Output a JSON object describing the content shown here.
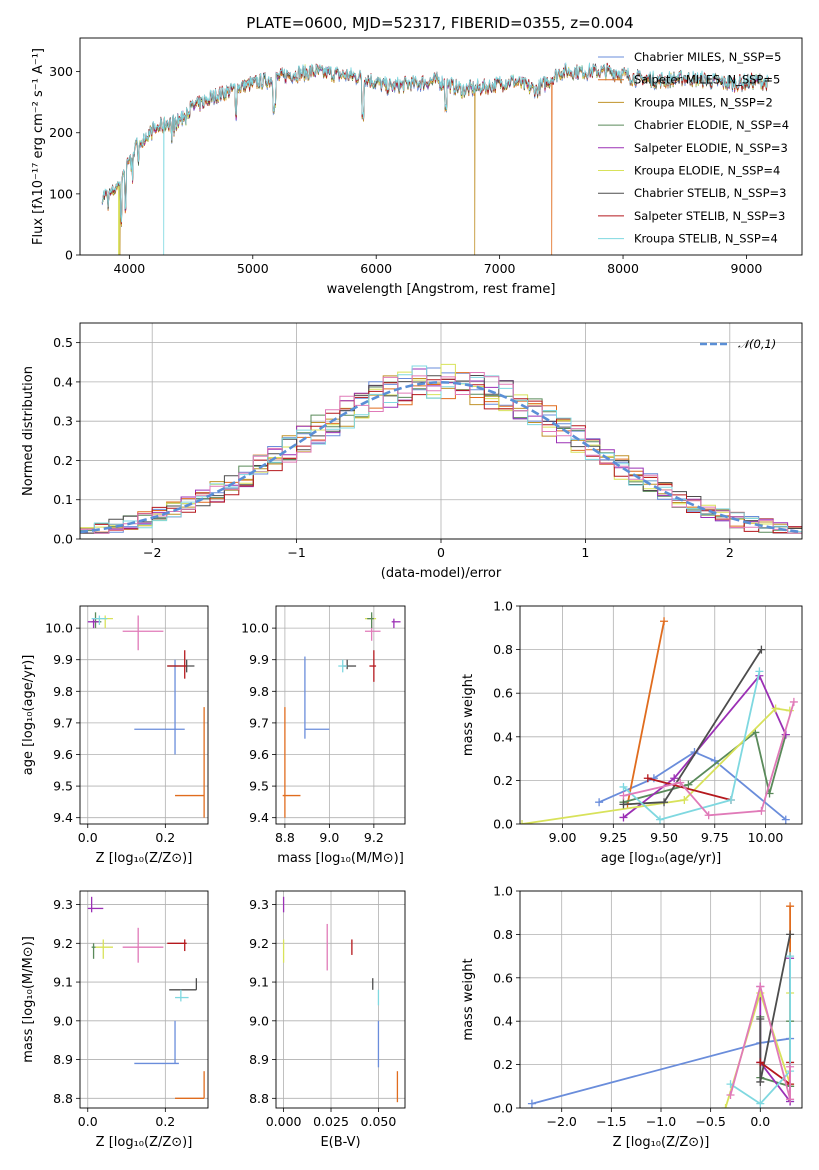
{
  "colors": {
    "Chabrier MILES": "#6a8ddb",
    "Salpeter MILES": "#e06c1e",
    "Kroupa MILES": "#c0922a",
    "Chabrier ELODIE": "#5a8a5a",
    "Salpeter ELODIE": "#9b30b5",
    "Kroupa ELODIE": "#d8e25a",
    "Chabrier STELIB": "#4d4d4d",
    "Salpeter STELIB": "#b5181d",
    "Kroupa STELIB": "#7fd8e0",
    "Salpeter ELODIE pink": "#e07ab8",
    "normal": "#5a8fd6",
    "grid": "#b0b0b0"
  },
  "chart_data": [
    {
      "id": "spectrum",
      "type": "line",
      "title": "PLATE=0600, MJD=52317, FIBERID=0355, z=0.004",
      "xlabel": "wavelength [Angstrom, rest frame]",
      "ylabel": "Flux [fλ10⁻¹⁷ erg cm⁻² s⁻¹ A⁻¹]",
      "xlim": [
        3600,
        9450
      ],
      "ylim": [
        0,
        355
      ],
      "xticks": [
        "4000",
        "5000",
        "6000",
        "7000",
        "8000",
        "9000"
      ],
      "yticks": [
        "0",
        "100",
        "200",
        "300"
      ],
      "grid": false,
      "legend_position": "upper-right",
      "legend": [
        "Chabrier MILES, N_SSP=5",
        "Salpeter MILES, N_SSP=5",
        "Kroupa MILES, N_SSP=2",
        "Chabrier ELODIE, N_SSP=4",
        "Salpeter ELODIE, N_SSP=3",
        "Kroupa ELODIE, N_SSP=4",
        "Chabrier STELIB, N_SSP=3",
        "Salpeter STELIB, N_SSP=3",
        "Kroupa STELIB, N_SSP=4"
      ],
      "continuum_x": [
        3780,
        3850,
        3920,
        4000,
        4100,
        4200,
        4300,
        4400,
        4500,
        4700,
        4900,
        5100,
        5300,
        5500,
        5700,
        5900,
        6100,
        6300,
        6500,
        6700,
        6900,
        7100,
        7300,
        7500,
        7700,
        7900,
        8100,
        8300,
        8500,
        8700,
        8900,
        9100,
        9180
      ],
      "continuum_y": [
        95,
        100,
        120,
        160,
        190,
        205,
        215,
        220,
        240,
        260,
        275,
        285,
        295,
        300,
        295,
        290,
        275,
        280,
        285,
        270,
        275,
        285,
        270,
        300,
        300,
        300,
        290,
        285,
        290,
        285,
        280,
        285,
        280
      ]
    },
    {
      "id": "residuals",
      "type": "area",
      "xlabel": "(data-model)/error",
      "ylabel": "Normed distribution",
      "xlim": [
        -2.5,
        2.5
      ],
      "ylim": [
        0,
        0.55
      ],
      "xticks": [
        "−2",
        "−1",
        "0",
        "1",
        "2"
      ],
      "yticks": [
        "0.0",
        "0.1",
        "0.2",
        "0.3",
        "0.4",
        "0.5"
      ],
      "grid": true,
      "legend": [
        "𝒩(0,1)"
      ],
      "legend_position": "upper-right",
      "bin_width": 0.1
    },
    {
      "id": "age_vs_Z",
      "type": "scatter",
      "xlabel": "Z [log₁₀(Z/Z⊙)]",
      "ylabel": "age  [log₁₀(age/yr)]",
      "xlim": [
        -0.02,
        0.31
      ],
      "ylim": [
        9.38,
        10.07
      ],
      "xticks": [
        "0.0",
        "0.2"
      ],
      "yticks": [
        "9.4",
        "9.5",
        "9.6",
        "9.7",
        "9.8",
        "9.9",
        "10.0"
      ],
      "grid": true,
      "points": [
        {
          "c": "Chabrier MILES",
          "x": 0.225,
          "y": 9.68,
          "ex": [
            0.12,
            0.25
          ],
          "ey": [
            9.6,
            9.9
          ]
        },
        {
          "c": "Salpeter MILES",
          "x": 0.3,
          "y": 9.47,
          "ex": [
            0.225,
            0.3
          ],
          "ey": [
            9.4,
            9.75
          ]
        },
        {
          "c": "Chabrier STELIB",
          "x": 0.255,
          "y": 9.88,
          "ex": [
            0.205,
            0.275
          ],
          "ey": [
            9.86,
            9.9
          ]
        },
        {
          "c": "Salpeter STELIB",
          "x": 0.25,
          "y": 9.88,
          "ex": [
            0.205,
            0.255
          ],
          "ey": [
            9.84,
            9.93
          ]
        },
        {
          "c": "Salpeter ELODIE pink",
          "x": 0.13,
          "y": 9.99,
          "ex": [
            0.09,
            0.195
          ],
          "ey": [
            9.93,
            10.04
          ]
        },
        {
          "c": "Kroupa ELODIE",
          "x": 0.045,
          "y": 10.03,
          "ex": [
            0.02,
            0.065
          ],
          "ey": [
            10.0,
            10.04
          ]
        },
        {
          "c": "Chabrier ELODIE",
          "x": 0.02,
          "y": 10.02,
          "ex": [
            0.01,
            0.035
          ],
          "ey": [
            10.0,
            10.05
          ]
        },
        {
          "c": "Salpeter ELODIE",
          "x": 0.015,
          "y": 10.02,
          "ex": [
            0.0,
            0.03
          ],
          "ey": [
            10.0,
            10.03
          ]
        },
        {
          "c": "Kroupa STELIB",
          "x": 0.03,
          "y": 10.03,
          "ex": [
            0.01,
            0.05
          ],
          "ey": [
            10.01,
            10.04
          ]
        }
      ]
    },
    {
      "id": "age_vs_mass",
      "type": "scatter",
      "xlabel": "mass [log₁₀(M/M⊙)]",
      "ylabel": "",
      "xlim": [
        8.76,
        9.34
      ],
      "ylim": [
        9.38,
        10.07
      ],
      "xticks": [
        "8.8",
        "9.0",
        "9.2"
      ],
      "yticks": [
        "9.4",
        "9.5",
        "9.6",
        "9.7",
        "9.8",
        "9.9",
        "10.0"
      ],
      "grid": true,
      "points": [
        {
          "c": "Chabrier MILES",
          "x": 8.89,
          "y": 9.68,
          "ex": [
            8.89,
            9.0
          ],
          "ey": [
            9.65,
            9.91
          ]
        },
        {
          "c": "Salpeter MILES",
          "x": 8.8,
          "y": 9.47,
          "ex": [
            8.79,
            8.87
          ],
          "ey": [
            9.4,
            9.75
          ]
        },
        {
          "c": "Chabrier STELIB",
          "x": 9.08,
          "y": 9.88,
          "ex": [
            9.06,
            9.12
          ],
          "ey": [
            9.87,
            9.9
          ]
        },
        {
          "c": "Kroupa STELIB",
          "x": 9.06,
          "y": 9.88,
          "ex": [
            9.04,
            9.08
          ],
          "ey": [
            9.86,
            9.9
          ]
        },
        {
          "c": "Salpeter STELIB",
          "x": 9.2,
          "y": 9.88,
          "ex": [
            9.18,
            9.21
          ],
          "ey": [
            9.83,
            9.93
          ]
        },
        {
          "c": "Salpeter ELODIE pink",
          "x": 9.19,
          "y": 9.99,
          "ex": [
            9.16,
            9.23
          ],
          "ey": [
            9.96,
            10.02
          ]
        },
        {
          "c": "Kroupa ELODIE",
          "x": 9.19,
          "y": 10.03,
          "ex": [
            9.16,
            9.21
          ],
          "ey": [
            10.02,
            10.04
          ]
        },
        {
          "c": "Chabrier ELODIE",
          "x": 9.19,
          "y": 10.03,
          "ex": [
            9.17,
            9.2
          ],
          "ey": [
            10.0,
            10.05
          ]
        },
        {
          "c": "Salpeter ELODIE",
          "x": 9.29,
          "y": 10.02,
          "ex": [
            9.28,
            9.32
          ],
          "ey": [
            10.0,
            10.03
          ]
        }
      ]
    },
    {
      "id": "weight_vs_age",
      "type": "line",
      "xlabel": "age  [log₁₀(age/yr)]",
      "ylabel": "mass weight",
      "xlim": [
        8.79,
        10.18
      ],
      "ylim": [
        0,
        1.0
      ],
      "xticks": [
        "9.00",
        "9.25",
        "9.50",
        "9.75",
        "10.00"
      ],
      "yticks": [
        "0.0",
        "0.2",
        "0.4",
        "0.6",
        "0.8",
        "1.0"
      ],
      "grid": true,
      "series": [
        {
          "c": "Chabrier MILES",
          "x": [
            9.18,
            9.45,
            9.65,
            9.75,
            10.1
          ],
          "y": [
            0.1,
            0.21,
            0.33,
            0.29,
            0.02
          ]
        },
        {
          "c": "Salpeter MILES",
          "x": [
            9.32,
            9.5
          ],
          "y": [
            0.09,
            0.93
          ]
        },
        {
          "c": "Chabrier ELODIE",
          "x": [
            9.3,
            9.62,
            9.95,
            10.02,
            10.1
          ],
          "y": [
            0.1,
            0.18,
            0.42,
            0.14,
            0.41
          ]
        },
        {
          "c": "Salpeter ELODIE",
          "x": [
            9.3,
            9.55,
            9.97,
            10.1
          ],
          "y": [
            0.03,
            0.21,
            0.68,
            0.41
          ]
        },
        {
          "c": "Kroupa ELODIE",
          "x": [
            8.8,
            9.6,
            10.05,
            10.12
          ],
          "y": [
            0.0,
            0.11,
            0.53,
            0.52
          ]
        },
        {
          "c": "Chabrier STELIB",
          "x": [
            9.3,
            9.5,
            9.98
          ],
          "y": [
            0.09,
            0.1,
            0.8
          ]
        },
        {
          "c": "Salpeter STELIB",
          "x": [
            9.42,
            9.83
          ],
          "y": [
            0.21,
            0.11
          ]
        },
        {
          "c": "Kroupa STELIB",
          "x": [
            9.3,
            9.48,
            9.83,
            9.97
          ],
          "y": [
            0.17,
            0.02,
            0.11,
            0.7
          ]
        },
        {
          "c": "Salpeter ELODIE pink",
          "x": [
            9.3,
            9.58,
            9.72,
            9.98,
            10.14
          ],
          "y": [
            0.13,
            0.19,
            0.04,
            0.06,
            0.56
          ]
        }
      ]
    },
    {
      "id": "mass_vs_Z",
      "type": "scatter",
      "xlabel": "Z [log₁₀(Z/Z⊙)]",
      "ylabel": "mass [log₁₀(M/M⊙)]",
      "xlim": [
        -0.02,
        0.31
      ],
      "ylim": [
        8.775,
        9.335
      ],
      "xticks": [
        "0.0",
        "0.2"
      ],
      "yticks": [
        "8.8",
        "8.9",
        "9.0",
        "9.1",
        "9.2",
        "9.3"
      ],
      "grid": true,
      "points": [
        {
          "c": "Salpeter ELODIE",
          "x": 0.01,
          "y": 9.29,
          "ex": [
            0.0,
            0.04
          ],
          "ey": [
            9.28,
            9.32
          ]
        },
        {
          "c": "Chabrier ELODIE",
          "x": 0.015,
          "y": 9.19,
          "ex": [
            0.01,
            0.02
          ],
          "ey": [
            9.16,
            9.2
          ]
        },
        {
          "c": "Kroupa ELODIE",
          "x": 0.04,
          "y": 9.19,
          "ex": [
            0.02,
            0.065
          ],
          "ey": [
            9.16,
            9.21
          ]
        },
        {
          "c": "Salpeter ELODIE pink",
          "x": 0.13,
          "y": 9.19,
          "ex": [
            0.09,
            0.195
          ],
          "ey": [
            9.15,
            9.24
          ]
        },
        {
          "c": "Salpeter STELIB",
          "x": 0.25,
          "y": 9.2,
          "ex": [
            0.205,
            0.255
          ],
          "ey": [
            9.18,
            9.21
          ]
        },
        {
          "c": "Chabrier STELIB",
          "x": 0.28,
          "y": 9.08,
          "ex": [
            0.21,
            0.28
          ],
          "ey": [
            9.08,
            9.11
          ]
        },
        {
          "c": "Kroupa STELIB",
          "x": 0.24,
          "y": 9.06,
          "ex": [
            0.225,
            0.26
          ],
          "ey": [
            9.05,
            9.08
          ]
        },
        {
          "c": "Chabrier MILES",
          "x": 0.225,
          "y": 8.89,
          "ex": [
            0.12,
            0.235
          ],
          "ey": [
            8.89,
            9.0
          ]
        },
        {
          "c": "Salpeter MILES",
          "x": 0.3,
          "y": 8.8,
          "ex": [
            0.225,
            0.3
          ],
          "ey": [
            8.8,
            8.87
          ]
        }
      ]
    },
    {
      "id": "mass_vs_EBV",
      "type": "scatter",
      "xlabel": "E(B-V)",
      "ylabel": "",
      "xlim": [
        -0.004,
        0.064
      ],
      "ylim": [
        8.775,
        9.335
      ],
      "xticks": [
        "0.000",
        "0.025",
        "0.050"
      ],
      "yticks": [
        "8.8",
        "8.9",
        "9.0",
        "9.1",
        "9.2",
        "9.3"
      ],
      "grid": true,
      "points": [
        {
          "c": "Salpeter ELODIE",
          "x": 0.0,
          "y": 9.3,
          "ex": [
            0.0,
            0.0
          ],
          "ey": [
            9.28,
            9.32
          ]
        },
        {
          "c": "Kroupa ELODIE",
          "x": 0.0,
          "y": 9.19,
          "ex": [
            0.0,
            0.0
          ],
          "ey": [
            9.15,
            9.21
          ]
        },
        {
          "c": "Salpeter ELODIE pink",
          "x": 0.023,
          "y": 9.19,
          "ex": [
            0.023,
            0.023
          ],
          "ey": [
            9.13,
            9.25
          ]
        },
        {
          "c": "Salpeter STELIB",
          "x": 0.036,
          "y": 9.19,
          "ex": [
            0.036,
            0.036
          ],
          "ey": [
            9.17,
            9.21
          ]
        },
        {
          "c": "Chabrier STELIB",
          "x": 0.047,
          "y": 9.1,
          "ex": [
            0.047,
            0.047
          ],
          "ey": [
            9.08,
            9.11
          ]
        },
        {
          "c": "Kroupa STELIB",
          "x": 0.05,
          "y": 9.06,
          "ex": [
            0.05,
            0.05
          ],
          "ey": [
            9.04,
            9.08
          ]
        },
        {
          "c": "Chabrier MILES",
          "x": 0.05,
          "y": 8.95,
          "ex": [
            0.05,
            0.05
          ],
          "ey": [
            8.88,
            9.0
          ]
        },
        {
          "c": "Salpeter MILES",
          "x": 0.06,
          "y": 8.83,
          "ex": [
            0.06,
            0.06
          ],
          "ey": [
            8.79,
            8.87
          ]
        }
      ]
    },
    {
      "id": "weight_vs_Z",
      "type": "line",
      "xlabel": "Z [log₁₀(Z/Z⊙)]",
      "ylabel": "mass weight",
      "xlim": [
        -2.42,
        0.42
      ],
      "ylim": [
        0,
        1.0
      ],
      "xticks": [
        "−2.0",
        "−1.5",
        "−1.0",
        "−0.5",
        "0.0"
      ],
      "yticks": [
        "0.0",
        "0.2",
        "0.4",
        "0.6",
        "0.8",
        "1.0"
      ],
      "grid": true,
      "series": [
        {
          "c": "Chabrier MILES",
          "x": [
            -2.3,
            0.0,
            0.3,
            0.3
          ],
          "y": [
            0.02,
            0.3,
            0.32,
            0.03
          ]
        },
        {
          "c": "Salpeter MILES",
          "x": [
            0.3,
            0.3
          ],
          "y": [
            0.93,
            0.1
          ]
        },
        {
          "c": "Chabrier ELODIE",
          "x": [
            0.0,
            0.0,
            0.3,
            0.3
          ],
          "y": [
            0.42,
            0.14,
            0.1,
            0.4
          ]
        },
        {
          "c": "Salpeter ELODIE",
          "x": [
            0.0,
            0.0,
            0.3,
            0.3
          ],
          "y": [
            0.56,
            0.21,
            0.03,
            0.69
          ]
        },
        {
          "c": "Kroupa ELODIE",
          "x": [
            -0.35,
            0.0,
            0.3,
            0.3
          ],
          "y": [
            0.0,
            0.53,
            0.11,
            0.53
          ]
        },
        {
          "c": "Chabrier STELIB",
          "x": [
            0.0,
            0.0,
            0.3
          ],
          "y": [
            0.41,
            0.12,
            0.8
          ]
        },
        {
          "c": "Salpeter STELIB",
          "x": [
            0.0,
            0.3,
            0.3
          ],
          "y": [
            0.21,
            0.11,
            0.21
          ]
        },
        {
          "c": "Kroupa STELIB",
          "x": [
            -0.3,
            0.0,
            0.3,
            0.3
          ],
          "y": [
            0.11,
            0.02,
            0.17,
            0.7
          ]
        },
        {
          "c": "Salpeter ELODIE pink",
          "x": [
            -0.3,
            0.0,
            0.3,
            0.3
          ],
          "y": [
            0.06,
            0.56,
            0.04,
            0.19
          ]
        }
      ]
    }
  ]
}
